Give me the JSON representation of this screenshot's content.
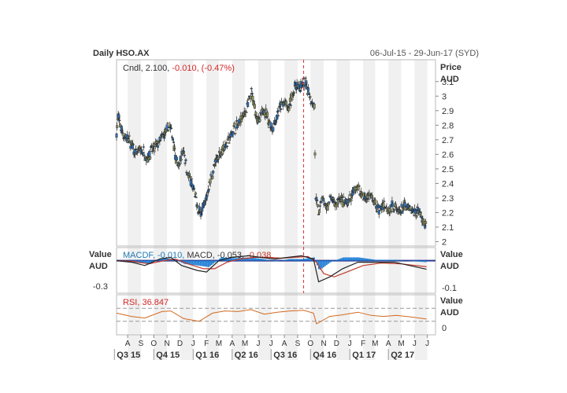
{
  "header": {
    "title": "Daily HSO.AX",
    "date_range": "06-Jul-15 - 29-Jun-17 (SYD)"
  },
  "colors": {
    "up": "#8a8f5f",
    "down": "#2f6fb0",
    "macd_hist": "#1f7fd6",
    "macd_line": "#222222",
    "signal_line": "#c0392b",
    "rsi_line": "#d2691e",
    "negative": "#d62728",
    "positive": "#1f77b4",
    "grid_band": "#f0f0f0",
    "marker": "#e03030"
  },
  "chart_data": [
    {
      "type": "candlestick",
      "legend": {
        "label": "Cndl",
        "value": "2.100",
        "change": "-0.010",
        "change_pct": "(-0.47%)"
      },
      "ylabel": "Price",
      "yunit": "AUD",
      "ylim": [
        1.97,
        3.25
      ],
      "yticks": [
        "3.1",
        "3",
        "2.9",
        "2.8",
        "2.7",
        "2.6",
        "2.5",
        "2.4",
        "2.3",
        "2.2",
        "2.1",
        "2"
      ],
      "close_path": [
        [
          "2015-07-06",
          2.75
        ],
        [
          "2015-07-10",
          2.86
        ],
        [
          "2015-07-16",
          2.78
        ],
        [
          "2015-07-24",
          2.72
        ],
        [
          "2015-08-03",
          2.7
        ],
        [
          "2015-08-11",
          2.66
        ],
        [
          "2015-08-20",
          2.6
        ],
        [
          "2015-08-28",
          2.63
        ],
        [
          "2015-09-07",
          2.62
        ],
        [
          "2015-09-15",
          2.57
        ],
        [
          "2015-09-24",
          2.62
        ],
        [
          "2015-10-02",
          2.64
        ],
        [
          "2015-10-12",
          2.68
        ],
        [
          "2015-10-21",
          2.72
        ],
        [
          "2015-10-30",
          2.75
        ],
        [
          "2015-11-06",
          2.8
        ],
        [
          "2015-11-16",
          2.7
        ],
        [
          "2015-11-20",
          2.6
        ],
        [
          "2015-11-27",
          2.5
        ],
        [
          "2015-12-04",
          2.58
        ],
        [
          "2015-12-10",
          2.63
        ],
        [
          "2015-12-18",
          2.48
        ],
        [
          "2015-12-28",
          2.4
        ],
        [
          "2016-01-05",
          2.32
        ],
        [
          "2016-01-14",
          2.2
        ],
        [
          "2016-01-22",
          2.22
        ],
        [
          "2016-02-01",
          2.3
        ],
        [
          "2016-02-10",
          2.42
        ],
        [
          "2016-02-20",
          2.52
        ],
        [
          "2016-03-02",
          2.6
        ],
        [
          "2016-03-14",
          2.65
        ],
        [
          "2016-03-25",
          2.7
        ],
        [
          "2016-04-05",
          2.78
        ],
        [
          "2016-04-15",
          2.8
        ],
        [
          "2016-04-26",
          2.86
        ],
        [
          "2016-05-06",
          2.92
        ],
        [
          "2016-05-16",
          3.02
        ],
        [
          "2016-05-25",
          2.9
        ],
        [
          "2016-06-03",
          2.82
        ],
        [
          "2016-06-14",
          2.92
        ],
        [
          "2016-06-24",
          2.84
        ],
        [
          "2016-07-04",
          2.78
        ],
        [
          "2016-07-14",
          2.86
        ],
        [
          "2016-07-22",
          2.92
        ],
        [
          "2016-08-01",
          2.96
        ],
        [
          "2016-08-10",
          2.9
        ],
        [
          "2016-08-19",
          3.0
        ],
        [
          "2016-08-29",
          3.08
        ],
        [
          "2016-09-07",
          3.05
        ],
        [
          "2016-09-16",
          3.1
        ],
        [
          "2016-09-26",
          3.04
        ],
        [
          "2016-10-05",
          2.96
        ],
        [
          "2016-10-10",
          2.93
        ],
        [
          "2016-10-13",
          2.3
        ],
        [
          "2016-10-20",
          2.2
        ],
        [
          "2016-10-28",
          2.3
        ],
        [
          "2016-11-07",
          2.22
        ],
        [
          "2016-11-17",
          2.3
        ],
        [
          "2016-11-28",
          2.25
        ],
        [
          "2016-12-08",
          2.3
        ],
        [
          "2016-12-20",
          2.26
        ],
        [
          "2017-01-04",
          2.3
        ],
        [
          "2017-01-16",
          2.38
        ],
        [
          "2017-01-26",
          2.34
        ],
        [
          "2017-02-06",
          2.3
        ],
        [
          "2017-02-17",
          2.32
        ],
        [
          "2017-02-28",
          2.26
        ],
        [
          "2017-03-10",
          2.22
        ],
        [
          "2017-03-22",
          2.26
        ],
        [
          "2017-04-03",
          2.22
        ],
        [
          "2017-04-13",
          2.25
        ],
        [
          "2017-04-26",
          2.2
        ],
        [
          "2017-05-08",
          2.24
        ],
        [
          "2017-05-19",
          2.22
        ],
        [
          "2017-05-31",
          2.2
        ],
        [
          "2017-06-12",
          2.22
        ],
        [
          "2017-06-22",
          2.14
        ],
        [
          "2017-06-29",
          2.1
        ]
      ],
      "marker_date": "2016-09-15"
    },
    {
      "type": "line",
      "panel": "MACD",
      "legend": {
        "hist_label": "MACDF",
        "hist_value": "-0.010",
        "macd_label": "MACD",
        "macd_value": "-0.053",
        "signal_value": "-0.038"
      },
      "left_label": "Value",
      "left_unit": "AUD",
      "left_tick": "-0.3",
      "right_label": "Value",
      "right_unit": "AUD",
      "right_tick": "-0.1",
      "ylim": [
        -0.2,
        0.08
      ],
      "macd": [
        [
          "2015-07-06",
          0.0
        ],
        [
          "2015-08-10",
          -0.01
        ],
        [
          "2015-09-10",
          -0.03
        ],
        [
          "2015-10-15",
          0.01
        ],
        [
          "2015-11-10",
          0.02
        ],
        [
          "2015-12-05",
          -0.03
        ],
        [
          "2016-01-10",
          -0.06
        ],
        [
          "2016-02-01",
          -0.07
        ],
        [
          "2016-03-01",
          0.0
        ],
        [
          "2016-04-01",
          0.02
        ],
        [
          "2016-05-10",
          0.03
        ],
        [
          "2016-06-05",
          0.02
        ],
        [
          "2016-07-10",
          0.01
        ],
        [
          "2016-08-10",
          0.02
        ],
        [
          "2016-09-10",
          0.03
        ],
        [
          "2016-10-08",
          0.01
        ],
        [
          "2016-10-20",
          -0.13
        ],
        [
          "2016-11-15",
          -0.1
        ],
        [
          "2016-12-15",
          -0.05
        ],
        [
          "2017-01-20",
          -0.01
        ],
        [
          "2017-03-01",
          -0.01
        ],
        [
          "2017-04-15",
          -0.01
        ],
        [
          "2017-06-29",
          -0.053
        ]
      ],
      "signal": [
        [
          "2015-07-06",
          0.0
        ],
        [
          "2015-08-15",
          -0.005
        ],
        [
          "2015-09-20",
          -0.02
        ],
        [
          "2015-10-25",
          0.0
        ],
        [
          "2015-11-20",
          0.01
        ],
        [
          "2015-12-20",
          -0.02
        ],
        [
          "2016-01-25",
          -0.05
        ],
        [
          "2016-02-20",
          -0.05
        ],
        [
          "2016-03-20",
          -0.01
        ],
        [
          "2016-04-20",
          0.01
        ],
        [
          "2016-05-25",
          0.02
        ],
        [
          "2016-06-25",
          0.02
        ],
        [
          "2016-07-25",
          0.015
        ],
        [
          "2016-08-25",
          0.02
        ],
        [
          "2016-09-25",
          0.025
        ],
        [
          "2016-10-15",
          -0.01
        ],
        [
          "2016-11-01",
          -0.08
        ],
        [
          "2016-11-25",
          -0.1
        ],
        [
          "2016-12-25",
          -0.07
        ],
        [
          "2017-02-01",
          -0.03
        ],
        [
          "2017-03-15",
          -0.015
        ],
        [
          "2017-05-01",
          -0.02
        ],
        [
          "2017-06-29",
          -0.038
        ]
      ],
      "hist": [
        [
          "2015-07-06",
          0.0
        ],
        [
          "2015-08-10",
          -0.01
        ],
        [
          "2015-09-15",
          -0.02
        ],
        [
          "2015-10-20",
          0.015
        ],
        [
          "2015-11-15",
          0.01
        ],
        [
          "2015-12-10",
          -0.02
        ],
        [
          "2016-01-10",
          -0.03
        ],
        [
          "2016-02-05",
          -0.04
        ],
        [
          "2016-03-05",
          0.02
        ],
        [
          "2016-04-05",
          0.015
        ],
        [
          "2016-05-12",
          0.02
        ],
        [
          "2016-06-10",
          0.01
        ],
        [
          "2016-07-12",
          -0.005
        ],
        [
          "2016-08-12",
          0.01
        ],
        [
          "2016-09-12",
          0.01
        ],
        [
          "2016-10-08",
          0.02
        ],
        [
          "2016-10-20",
          -0.06
        ],
        [
          "2016-11-15",
          -0.01
        ],
        [
          "2016-12-15",
          0.02
        ],
        [
          "2017-01-20",
          0.02
        ],
        [
          "2017-03-01",
          0.005
        ],
        [
          "2017-04-15",
          0.005
        ],
        [
          "2017-06-29",
          -0.01
        ]
      ]
    },
    {
      "type": "line",
      "panel": "RSI",
      "legend": {
        "label": "RSI",
        "value": "36.847"
      },
      "right_label": "Value",
      "right_unit": "AUD",
      "right_tick": "0",
      "ylim": [
        0,
        100
      ],
      "levels": [
        70,
        30
      ],
      "rsi": [
        [
          "2015-07-06",
          55
        ],
        [
          "2015-08-10",
          45
        ],
        [
          "2015-09-10",
          40
        ],
        [
          "2015-10-20",
          60
        ],
        [
          "2015-11-10",
          62
        ],
        [
          "2015-12-10",
          38
        ],
        [
          "2016-01-15",
          30
        ],
        [
          "2016-02-15",
          55
        ],
        [
          "2016-03-15",
          62
        ],
        [
          "2016-04-15",
          60
        ],
        [
          "2016-05-15",
          66
        ],
        [
          "2016-06-15",
          52
        ],
        [
          "2016-07-15",
          58
        ],
        [
          "2016-08-15",
          62
        ],
        [
          "2016-09-15",
          64
        ],
        [
          "2016-10-08",
          55
        ],
        [
          "2016-10-15",
          22
        ],
        [
          "2016-11-15",
          45
        ],
        [
          "2016-12-15",
          50
        ],
        [
          "2017-01-20",
          58
        ],
        [
          "2017-02-20",
          48
        ],
        [
          "2017-03-20",
          45
        ],
        [
          "2017-04-20",
          48
        ],
        [
          "2017-05-20",
          44
        ],
        [
          "2017-06-29",
          36.847
        ]
      ]
    },
    {
      "type": "axis",
      "months": [
        {
          "label": "A",
          "date": "2015-08-01"
        },
        {
          "label": "S",
          "date": "2015-09-01"
        },
        {
          "label": "O",
          "date": "2015-10-01"
        },
        {
          "label": "N",
          "date": "2015-11-01"
        },
        {
          "label": "D",
          "date": "2015-12-01"
        },
        {
          "label": "J",
          "date": "2016-01-01"
        },
        {
          "label": "F",
          "date": "2016-02-01"
        },
        {
          "label": "M",
          "date": "2016-03-01"
        },
        {
          "label": "A",
          "date": "2016-04-01"
        },
        {
          "label": "M",
          "date": "2016-05-01"
        },
        {
          "label": "J",
          "date": "2016-06-01"
        },
        {
          "label": "J",
          "date": "2016-07-01"
        },
        {
          "label": "A",
          "date": "2016-08-01"
        },
        {
          "label": "S",
          "date": "2016-09-01"
        },
        {
          "label": "O",
          "date": "2016-10-01"
        },
        {
          "label": "N",
          "date": "2016-11-01"
        },
        {
          "label": "D",
          "date": "2016-12-01"
        },
        {
          "label": "J",
          "date": "2017-01-01"
        },
        {
          "label": "F",
          "date": "2017-02-01"
        },
        {
          "label": "M",
          "date": "2017-03-01"
        },
        {
          "label": "A",
          "date": "2017-04-01"
        },
        {
          "label": "M",
          "date": "2017-05-01"
        },
        {
          "label": "J",
          "date": "2017-06-01"
        },
        {
          "label": "J",
          "date": "2017-07-01"
        }
      ],
      "quarters": [
        {
          "label": "Q3 15",
          "date": "2015-07-01"
        },
        {
          "label": "Q4 15",
          "date": "2015-10-01"
        },
        {
          "label": "Q1 16",
          "date": "2016-01-01"
        },
        {
          "label": "Q2 16",
          "date": "2016-04-01"
        },
        {
          "label": "Q3 16",
          "date": "2016-07-01"
        },
        {
          "label": "Q4 16",
          "date": "2016-10-01"
        },
        {
          "label": "Q1 17",
          "date": "2017-01-01"
        },
        {
          "label": "Q2 17",
          "date": "2017-04-01"
        }
      ],
      "x_start": "2015-07-06",
      "x_end": "2017-07-20"
    }
  ]
}
